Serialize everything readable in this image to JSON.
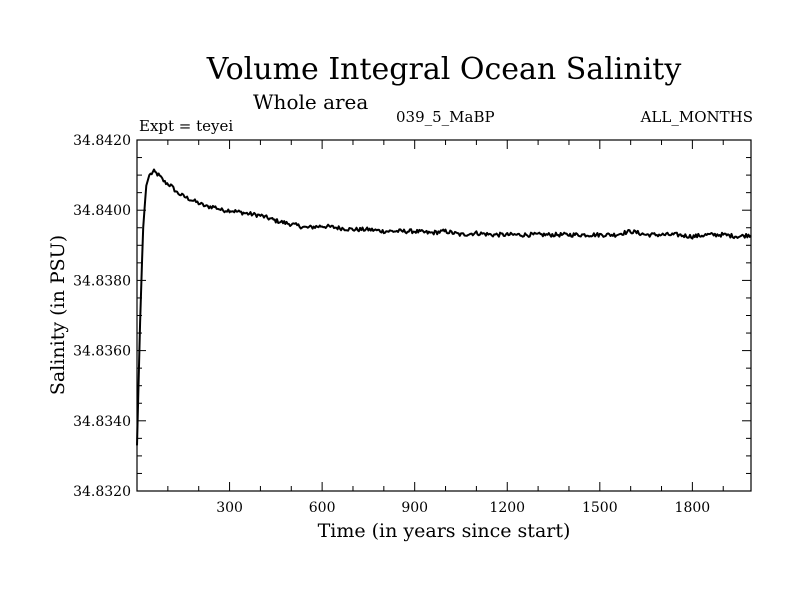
{
  "chart_data": {
    "type": "line",
    "title": "Volume Integral Ocean Salinity",
    "subtitle": "Whole area",
    "annotations": {
      "left": "Expt = teyei",
      "center": "039_5_MaBP",
      "right": "ALL_MONTHS"
    },
    "xlabel": "Time (in years since start)",
    "ylabel": "Salinity (in PSU)",
    "xlim": [
      0,
      1990
    ],
    "ylim": [
      34.832,
      34.842
    ],
    "xticks": [
      300,
      600,
      900,
      1200,
      1500,
      1800
    ],
    "xtick_labels": [
      "300",
      "600",
      "900",
      "1200",
      "1500",
      "1800"
    ],
    "yticks": [
      34.832,
      34.834,
      34.836,
      34.838,
      34.84,
      34.842
    ],
    "ytick_labels": [
      "34.8320",
      "34.8340",
      "34.8360",
      "34.8380",
      "34.8400",
      "34.8420"
    ],
    "grid": false,
    "series": [
      {
        "name": "Salinity",
        "x": [
          0,
          5,
          10,
          20,
          30,
          40,
          55,
          70,
          90,
          110,
          130,
          150,
          175,
          200,
          225,
          250,
          275,
          300,
          330,
          360,
          400,
          450,
          500,
          550,
          600,
          650,
          700,
          750,
          800,
          850,
          900,
          950,
          1000,
          1050,
          1100,
          1150,
          1200,
          1250,
          1300,
          1350,
          1400,
          1450,
          1500,
          1550,
          1600,
          1650,
          1700,
          1750,
          1800,
          1850,
          1900,
          1950,
          1990
        ],
        "values": [
          34.8333,
          34.835,
          34.8368,
          34.8395,
          34.8407,
          34.841,
          34.8411,
          34.841,
          34.8408,
          34.8407,
          34.8405,
          34.8404,
          34.8403,
          34.8402,
          34.8401,
          34.8401,
          34.84,
          34.84,
          34.83995,
          34.8399,
          34.83985,
          34.8397,
          34.8396,
          34.8395,
          34.83955,
          34.8395,
          34.83945,
          34.83945,
          34.8394,
          34.8394,
          34.8394,
          34.83935,
          34.8394,
          34.8393,
          34.83935,
          34.8393,
          34.8393,
          34.8393,
          34.8393,
          34.8393,
          34.8393,
          34.8393,
          34.8393,
          34.8393,
          34.8394,
          34.8393,
          34.8393,
          34.8393,
          34.83925,
          34.8393,
          34.8393,
          34.83925,
          34.8393
        ]
      }
    ]
  }
}
